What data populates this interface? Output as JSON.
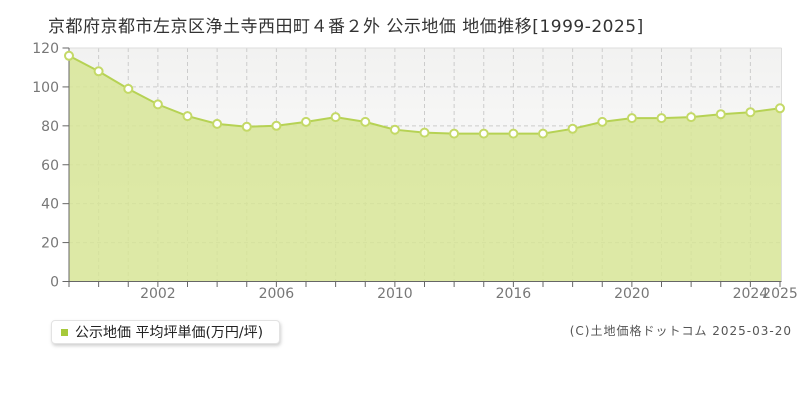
{
  "title": "京都府京都市左京区浄土寺西田町４番２外 公示地価 地価推移[1999-2025]",
  "legend": {
    "label": "公示地価 平均坪単価(万円/坪)",
    "swatch_color": "#a6c93a"
  },
  "copyright": "(C)土地価格ドットコム 2025-03-20",
  "chart_data": {
    "type": "area",
    "title": "京都府京都市左京区浄土寺西田町４番２外 公示地価 地価推移[1999-2025]",
    "xlabel": "",
    "ylabel": "平均坪単価(万円/坪)",
    "ylim": [
      0,
      120
    ],
    "y_ticks": [
      0,
      20,
      40,
      60,
      80,
      100,
      120
    ],
    "grid": true,
    "legend_position": "bottom-left",
    "years": [
      1999,
      2000,
      2001,
      2002,
      2003,
      2004,
      2005,
      2006,
      2007,
      2008,
      2009,
      2010,
      2011,
      2013,
      2015,
      2016,
      2017,
      2018,
      2019,
      2020,
      2021,
      2022,
      2023,
      2024,
      2025
    ],
    "values": [
      116,
      108,
      99,
      91,
      85,
      81,
      79.5,
      80,
      82,
      84.5,
      82,
      78,
      76.5,
      76,
      76,
      76,
      76,
      78.5,
      82,
      84,
      84,
      84.5,
      86,
      87,
      89
    ],
    "x_ticks": [
      {
        "label": "2002",
        "index": 3
      },
      {
        "label": "2006",
        "index": 7
      },
      {
        "label": "2010",
        "index": 11
      },
      {
        "label": "2016",
        "index": 15
      },
      {
        "label": "2020",
        "index": 19
      },
      {
        "label": "2024",
        "index": 23
      },
      {
        "label": "2025",
        "index": 24
      }
    ],
    "style": {
      "area_fill": "#d7e597",
      "area_opacity": 0.85,
      "line": "#b6d254",
      "marker_ring": "#c4d967",
      "marker_fill": "#ffffff",
      "grid_line": "#cccccc",
      "axis": "#666666",
      "border": "#dddddd",
      "tick_label": "#777777",
      "plot_bg_top": "#f2f2f1",
      "plot_bg_bottom": "#ffffff"
    }
  }
}
